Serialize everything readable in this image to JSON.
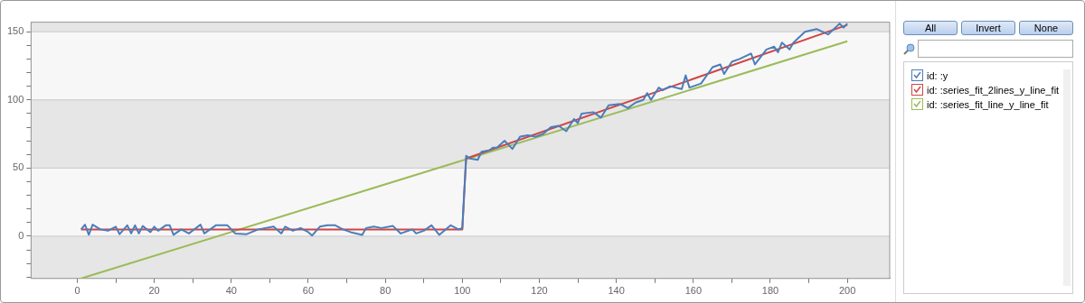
{
  "chart_data": {
    "type": "line",
    "legend": "right",
    "grid": "y",
    "marker": "none",
    "line_style": "solid",
    "xlim": [
      -12,
      211
    ],
    "ylim": [
      -31,
      157
    ],
    "xticks": [
      0,
      {
        "value": 10,
        "label": null
      },
      20,
      {
        "value": 30,
        "label": null
      },
      40,
      {
        "value": 50,
        "label": null
      },
      60,
      {
        "value": 70,
        "label": null
      },
      80,
      {
        "value": 90,
        "label": null
      },
      100,
      {
        "value": 110,
        "label": null
      },
      120,
      {
        "value": 130,
        "label": null
      },
      140,
      {
        "value": 150,
        "label": null
      },
      160,
      {
        "value": 170,
        "label": null
      },
      180,
      {
        "value": 190,
        "label": null
      },
      200
    ],
    "yticks": [
      {
        "value": -30,
        "label": null
      },
      {
        "value": -20,
        "label": null
      },
      {
        "value": -10,
        "label": null
      },
      0,
      {
        "value": 10,
        "label": null
      },
      {
        "value": 20,
        "label": null
      },
      {
        "value": 30,
        "label": null
      },
      {
        "value": 40,
        "label": null
      },
      50,
      {
        "value": 60,
        "label": null
      },
      {
        "value": 70,
        "label": null
      },
      {
        "value": 80,
        "label": null
      },
      {
        "value": 90,
        "label": null
      },
      100,
      {
        "value": 110,
        "label": null
      },
      {
        "value": 120,
        "label": null
      },
      {
        "value": 130,
        "label": null
      },
      {
        "value": 140,
        "label": null
      },
      150
    ],
    "annotations": [
      "All",
      "Invert",
      "None"
    ],
    "series": [
      {
        "name": "id: :y",
        "color": "#4a7ebb",
        "x": [
          1,
          2,
          3,
          4,
          6,
          8,
          10,
          11,
          13,
          14,
          15,
          16,
          17,
          19,
          20,
          21,
          23,
          24,
          25,
          27,
          29,
          32,
          33,
          36,
          39,
          41,
          44,
          47,
          51,
          53,
          54,
          56,
          58,
          60,
          61,
          63,
          65,
          67,
          69,
          71,
          74,
          75,
          77,
          79,
          82,
          84,
          87,
          88,
          90,
          92,
          94,
          97,
          99,
          100,
          101,
          102,
          104,
          105,
          107,
          108,
          109,
          111,
          113,
          115,
          117,
          119,
          121,
          123,
          125,
          127,
          129,
          130,
          131,
          134,
          136,
          138,
          141,
          143,
          145,
          147,
          148,
          149,
          151,
          152,
          154,
          157,
          158,
          159,
          162,
          165,
          167,
          168,
          170,
          172,
          175,
          176,
          179,
          181,
          182,
          183,
          185,
          186,
          189,
          192,
          195,
          198,
          199,
          200
        ],
        "values": [
          5,
          8.5,
          1,
          8.5,
          5,
          4,
          7,
          1.5,
          8,
          2,
          8,
          2,
          7.5,
          3,
          7,
          4,
          8,
          8,
          1,
          5,
          2,
          8.5,
          2,
          8,
          8,
          2,
          1.5,
          5,
          7,
          2,
          7,
          4,
          6,
          3,
          0.5,
          7,
          8,
          8,
          5,
          3,
          1,
          6,
          7,
          6,
          7.5,
          2,
          5,
          2,
          4,
          8,
          1,
          8,
          5,
          6,
          59,
          57,
          56,
          62,
          63,
          65,
          65,
          70,
          64,
          73,
          74,
          73,
          75,
          80,
          81,
          77,
          86,
          83,
          90,
          91,
          87,
          96,
          97,
          94,
          98,
          100,
          105,
          100,
          109,
          107,
          110,
          108,
          118,
          109,
          112,
          124,
          126,
          119,
          128,
          130,
          134,
          126,
          137,
          139,
          135,
          142,
          137,
          142,
          150,
          152,
          148,
          156,
          153,
          156
        ]
      },
      {
        "name": "id: :series_fit_2lines_y_line_fit",
        "color": "#d04545",
        "x": [
          1,
          100,
          101,
          200
        ],
        "values": [
          5,
          5,
          57,
          155
        ]
      },
      {
        "name": "id: :series_fit_line_y_line_fit",
        "color": "#9bbb59",
        "x": [
          1,
          200
        ],
        "values": [
          -31,
          143
        ]
      }
    ]
  }
}
